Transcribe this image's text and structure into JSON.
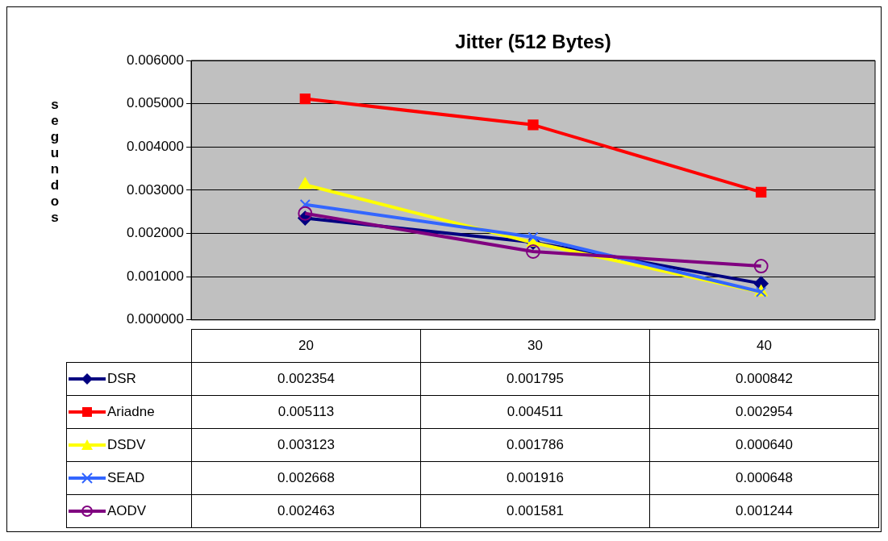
{
  "chart_data": {
    "type": "line",
    "title": "Jitter (512 Bytes)",
    "ylabel": "segundos",
    "categories": [
      "20",
      "30",
      "40"
    ],
    "ylim": [
      0,
      0.006
    ],
    "yticks": [
      {
        "value": 0,
        "label": "0.000000"
      },
      {
        "value": 0.001,
        "label": "0.001000"
      },
      {
        "value": 0.002,
        "label": "0.002000"
      },
      {
        "value": 0.003,
        "label": "0.003000"
      },
      {
        "value": 0.004,
        "label": "0.004000"
      },
      {
        "value": 0.005,
        "label": "0.005000"
      },
      {
        "value": 0.006,
        "label": "0.006000"
      }
    ],
    "grid": "y",
    "legend": "bottom",
    "series": [
      {
        "name": "DSR",
        "color": "#000080",
        "marker": "diamond",
        "values": [
          0.002354,
          0.001795,
          0.000842
        ],
        "value_labels": [
          "0.002354",
          "0.001795",
          "0.000842"
        ]
      },
      {
        "name": "Ariadne",
        "color": "#ff0000",
        "marker": "square",
        "values": [
          0.005113,
          0.004511,
          0.002954
        ],
        "value_labels": [
          "0.005113",
          "0.004511",
          "0.002954"
        ]
      },
      {
        "name": "DSDV",
        "color": "#ffff00",
        "marker": "triangle",
        "values": [
          0.003123,
          0.001786,
          0.00064
        ],
        "value_labels": [
          "0.003123",
          "0.001786",
          "0.000640"
        ]
      },
      {
        "name": "SEAD",
        "color": "#3366ff",
        "marker": "cross",
        "values": [
          0.002668,
          0.001916,
          0.000648
        ],
        "value_labels": [
          "0.002668",
          "0.001916",
          "0.000648"
        ]
      },
      {
        "name": "AODV",
        "color": "#800080",
        "marker": "circle",
        "values": [
          0.002463,
          0.001581,
          0.001244
        ],
        "value_labels": [
          "0.002463",
          "0.001581",
          "0.001244"
        ]
      }
    ]
  }
}
